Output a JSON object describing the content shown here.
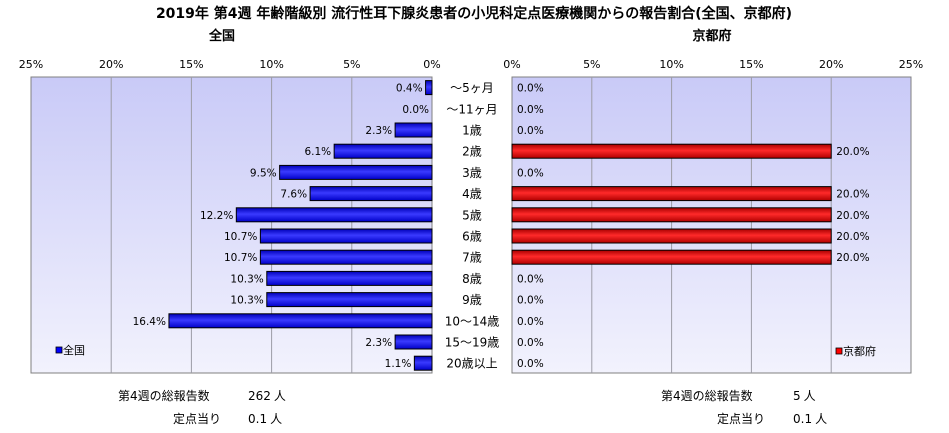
{
  "chart_data": {
    "type": "bar",
    "title": "2019年 第4週 年齢階級別 流行性耳下腺炎患者の小児科定点医療機関からの報告割合(全国、京都府)",
    "categories": [
      "～5ヶ月",
      "～11ヶ月",
      "1歳",
      "2歳",
      "3歳",
      "4歳",
      "5歳",
      "6歳",
      "7歳",
      "8歳",
      "9歳",
      "10～14歳",
      "15～19歳",
      "20歳以上"
    ],
    "unit": "%",
    "xlim": [
      0,
      25
    ],
    "ticks": [
      "0%",
      "5%",
      "10%",
      "15%",
      "20%",
      "25%"
    ],
    "grid": true,
    "panels": [
      {
        "side": "left",
        "title": "全国",
        "legend": "全国",
        "legend_position": "bottom-left",
        "color": "#0000ff",
        "values": [
          0.4,
          0.0,
          2.3,
          6.1,
          9.5,
          7.6,
          12.2,
          10.7,
          10.7,
          10.3,
          10.3,
          16.4,
          2.3,
          1.1
        ],
        "labels": [
          "0.4%",
          "0.0%",
          "2.3%",
          "6.1%",
          "9.5%",
          "7.6%",
          "12.2%",
          "10.7%",
          "10.7%",
          "10.3%",
          "10.3%",
          "16.4%",
          "2.3%",
          "1.1%"
        ]
      },
      {
        "side": "right",
        "title": "京都府",
        "legend": "京都府",
        "legend_position": "bottom-right",
        "color": "#ff0000",
        "values": [
          0.0,
          0.0,
          0.0,
          20.0,
          0.0,
          20.0,
          20.0,
          20.0,
          20.0,
          0.0,
          0.0,
          0.0,
          0.0,
          0.0
        ],
        "labels": [
          "0.0%",
          "0.0%",
          "0.0%",
          "20.0%",
          "0.0%",
          "20.0%",
          "20.0%",
          "20.0%",
          "20.0%",
          "0.0%",
          "0.0%",
          "0.0%",
          "0.0%",
          "0.0%"
        ]
      }
    ]
  },
  "footer": {
    "national": {
      "total_label": "第4週の総報告数",
      "total_value": "262",
      "total_unit": "人",
      "per_label": "定点当り",
      "per_value": "0.1",
      "per_unit": "人"
    },
    "kyoto": {
      "total_label": "第4週の総報告数",
      "total_value": "5",
      "total_unit": "人",
      "per_label": "定点当り",
      "per_value": "0.1",
      "per_unit": "人"
    }
  }
}
